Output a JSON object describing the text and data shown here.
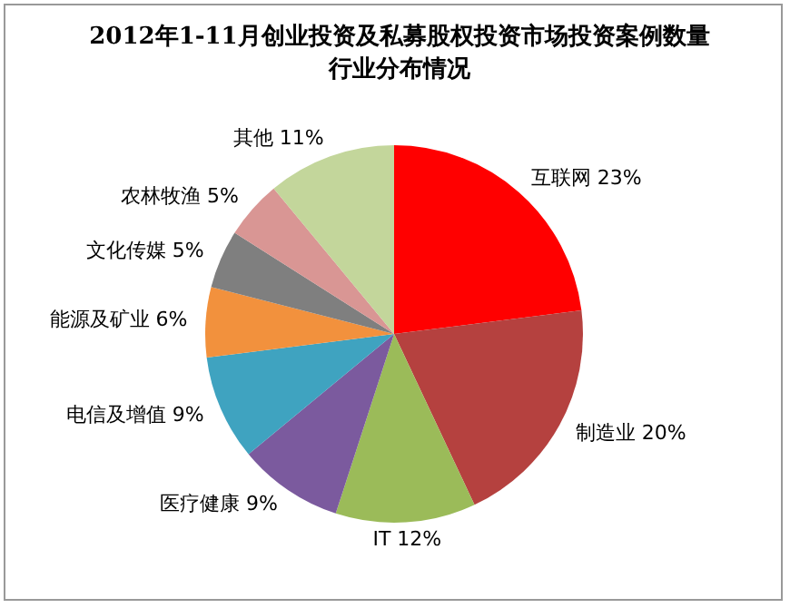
{
  "chart_data": {
    "type": "pie",
    "title": "2012年1-11月创业投资及私募股权投资市场投资案例数量行业分布情况",
    "categories": [
      "互联网",
      "制造业",
      "IT",
      "医疗健康",
      "电信及增值",
      "能源及矿业",
      "文化传媒",
      "农林牧渔",
      "其他"
    ],
    "values": [
      23,
      20,
      12,
      9,
      9,
      6,
      5,
      5,
      11
    ],
    "colors": [
      "#ff0000",
      "#b5413f",
      "#9bbb59",
      "#7b5a9e",
      "#3fa3c0",
      "#f2913d",
      "#7f7f7f",
      "#d99694",
      "#c3d69b"
    ],
    "value_labels": [
      "23%",
      "20%",
      "12%",
      "9%",
      "9%",
      "6%",
      "5%",
      "5%",
      "11%"
    ],
    "legend": false
  }
}
